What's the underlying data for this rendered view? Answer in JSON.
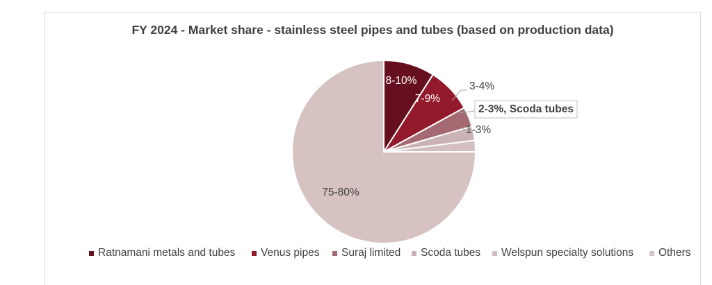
{
  "chart_data": {
    "type": "pie",
    "title": "FY 2024 - Market share - stainless steel pipes and tubes (based on production data)",
    "slices": [
      {
        "name": "Ratnamani metals and tubes",
        "value": 9,
        "label": "8-10%",
        "color": "#66101f"
      },
      {
        "name": "Venus pipes",
        "value": 8,
        "label": "7-9%",
        "color": "#931a2a"
      },
      {
        "name": "Suraj limited",
        "value": 3.5,
        "label": "3-4%",
        "color": "#a56a71"
      },
      {
        "name": "Scoda tubes",
        "value": 2.5,
        "label": "2-3%, Scoda tubes",
        "color": "#cbb3b5"
      },
      {
        "name": "Welspun specialty solutions",
        "value": 2,
        "label": "1-3%",
        "color": "#d3bfc1"
      },
      {
        "name": "Others",
        "value": 75,
        "label": "75-80%",
        "color": "#d7c2c2"
      }
    ],
    "legend_position": "bottom"
  }
}
